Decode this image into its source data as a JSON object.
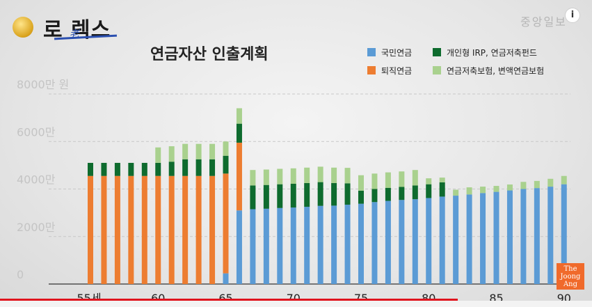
{
  "header": {
    "logo_text": "로老렉스",
    "brand_watermark": "중앙일보"
  },
  "corner_logo": {
    "text": "The Joong Ang"
  },
  "chart_data": {
    "type": "bar",
    "stacked": true,
    "title": "연금자산 인출계획",
    "y_unit_label": "8000만 원",
    "ylim": [
      0,
      8000
    ],
    "y_ticks": [
      {
        "value": 0,
        "label": "0"
      },
      {
        "value": 2000,
        "label": "2000만"
      },
      {
        "value": 4000,
        "label": "4000만"
      },
      {
        "value": 6000,
        "label": "6000만"
      },
      {
        "value": 8000,
        "label": "8000만 원"
      }
    ],
    "x": [
      55,
      56,
      57,
      58,
      59,
      60,
      61,
      62,
      63,
      64,
      65,
      66,
      67,
      68,
      69,
      70,
      71,
      72,
      73,
      74,
      75,
      76,
      77,
      78,
      79,
      80,
      81,
      82,
      83,
      84,
      85,
      86,
      87,
      88,
      89,
      90
    ],
    "x_tick_labels": [
      {
        "x": 55,
        "label": "55세"
      },
      {
        "x": 60,
        "label": "60"
      },
      {
        "x": 65,
        "label": "65"
      },
      {
        "x": 70,
        "label": "70"
      },
      {
        "x": 75,
        "label": "75"
      },
      {
        "x": 80,
        "label": "80"
      },
      {
        "x": 85,
        "label": "85"
      },
      {
        "x": 90,
        "label": "90"
      }
    ],
    "grid": true,
    "legend_position": "top-right",
    "colors": {
      "national": "#5b9bd5",
      "retirement": "#ed7d31",
      "irp": "#0e6b2e",
      "insurance": "#a9d18e"
    },
    "series": [
      {
        "key": "national",
        "name": "국민연금",
        "values": [
          0,
          0,
          0,
          0,
          0,
          0,
          0,
          0,
          0,
          0,
          450,
          3100,
          3150,
          3170,
          3200,
          3220,
          3250,
          3290,
          3300,
          3340,
          3380,
          3450,
          3500,
          3540,
          3570,
          3620,
          3680,
          3720,
          3770,
          3830,
          3880,
          3940,
          4000,
          4040,
          4100,
          4200
        ]
      },
      {
        "key": "retirement",
        "name": "퇴직연금",
        "values": [
          4550,
          4550,
          4550,
          4550,
          4550,
          4550,
          4550,
          4550,
          4550,
          4550,
          4200,
          2850,
          0,
          0,
          0,
          0,
          0,
          0,
          0,
          0,
          0,
          0,
          0,
          0,
          0,
          0,
          0,
          0,
          0,
          0,
          0,
          0,
          0,
          0,
          0,
          0
        ]
      },
      {
        "key": "irp",
        "name": "개인형 IRP, 연금저축펀드",
        "values": [
          550,
          550,
          550,
          550,
          550,
          550,
          600,
          700,
          700,
          700,
          750,
          800,
          1000,
          1000,
          1000,
          1000,
          1000,
          1000,
          950,
          900,
          550,
          550,
          550,
          550,
          580,
          580,
          600,
          0,
          0,
          0,
          0,
          0,
          0,
          0,
          0,
          0
        ]
      },
      {
        "key": "insurance",
        "name": "연금저축보험, 변액연금보험",
        "values": [
          0,
          0,
          0,
          0,
          0,
          650,
          650,
          650,
          650,
          650,
          600,
          650,
          650,
          650,
          650,
          650,
          650,
          650,
          650,
          650,
          650,
          650,
          650,
          650,
          650,
          250,
          200,
          250,
          300,
          270,
          250,
          250,
          300,
          300,
          330,
          350
        ]
      }
    ]
  }
}
